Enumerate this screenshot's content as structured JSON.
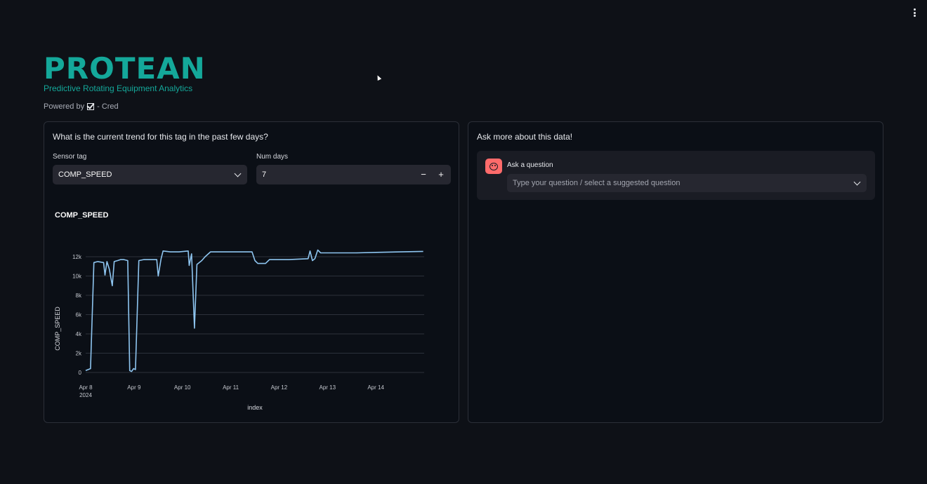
{
  "header": {
    "brand_title": "PROTEAN",
    "brand_subtitle": "Predictive Rotating Equipment Analytics",
    "powered_by": "Powered by",
    "powered_suffix": "- Cred"
  },
  "left_panel": {
    "question": "What is the current trend for this tag in the past few days?",
    "sensor_label": "Sensor tag",
    "sensor_value": "COMP_SPEED",
    "days_label": "Num days",
    "days_value": "7",
    "minus_label": "−",
    "plus_label": "+"
  },
  "right_panel": {
    "title": "Ask more about this data!",
    "ask_label": "Ask a question",
    "ask_placeholder": "Type your question / select a suggested question"
  },
  "colors": {
    "accent": "#14a89a",
    "line": "#8ec5f0",
    "avatar": "#ff6b6b"
  },
  "chart_data": {
    "type": "line",
    "title": "COMP_SPEED",
    "xlabel": "index",
    "ylabel": "COMP_SPEED",
    "ylim": [
      0,
      12000
    ],
    "xlim": [
      0,
      7
    ],
    "y_ticks": [
      {
        "value": 0,
        "label": "0"
      },
      {
        "value": 2000,
        "label": "2k"
      },
      {
        "value": 4000,
        "label": "4k"
      },
      {
        "value": 6000,
        "label": "6k"
      },
      {
        "value": 8000,
        "label": "8k"
      },
      {
        "value": 10000,
        "label": "10k"
      },
      {
        "value": 12000,
        "label": "12k"
      }
    ],
    "x_ticks": [
      {
        "value": 0,
        "label": "Apr 8",
        "sub": "2024"
      },
      {
        "value": 1,
        "label": "Apr 9",
        "sub": ""
      },
      {
        "value": 2,
        "label": "Apr 10",
        "sub": ""
      },
      {
        "value": 3,
        "label": "Apr 11",
        "sub": ""
      },
      {
        "value": 4,
        "label": "Apr 12",
        "sub": ""
      },
      {
        "value": 5,
        "label": "Apr 13",
        "sub": ""
      },
      {
        "value": 6,
        "label": "Apr 14",
        "sub": ""
      }
    ],
    "series": [
      {
        "name": "COMP_SPEED",
        "points": [
          [
            0.0,
            200
          ],
          [
            0.1,
            400
          ],
          [
            0.17,
            11400
          ],
          [
            0.25,
            11500
          ],
          [
            0.37,
            11400
          ],
          [
            0.4,
            10100
          ],
          [
            0.44,
            11500
          ],
          [
            0.49,
            10700
          ],
          [
            0.55,
            9000
          ],
          [
            0.59,
            11500
          ],
          [
            0.66,
            11600
          ],
          [
            0.72,
            11700
          ],
          [
            0.79,
            11700
          ],
          [
            0.87,
            11600
          ],
          [
            0.91,
            200
          ],
          [
            0.95,
            100
          ],
          [
            0.99,
            400
          ],
          [
            1.03,
            300
          ],
          [
            1.1,
            11600
          ],
          [
            1.2,
            11700
          ],
          [
            1.35,
            11700
          ],
          [
            1.47,
            11700
          ],
          [
            1.5,
            10000
          ],
          [
            1.56,
            11800
          ],
          [
            1.6,
            12600
          ],
          [
            1.75,
            12500
          ],
          [
            1.93,
            12500
          ],
          [
            2.12,
            12600
          ],
          [
            2.14,
            11100
          ],
          [
            2.19,
            12300
          ],
          [
            2.25,
            4600
          ],
          [
            2.3,
            11200
          ],
          [
            2.4,
            11600
          ],
          [
            2.47,
            12000
          ],
          [
            2.58,
            12500
          ],
          [
            2.8,
            12500
          ],
          [
            3.1,
            12500
          ],
          [
            3.44,
            12500
          ],
          [
            3.5,
            11600
          ],
          [
            3.56,
            11300
          ],
          [
            3.72,
            11300
          ],
          [
            3.8,
            11700
          ],
          [
            4.2,
            11700
          ],
          [
            4.6,
            11800
          ],
          [
            4.64,
            12600
          ],
          [
            4.69,
            11600
          ],
          [
            4.74,
            11800
          ],
          [
            4.8,
            12700
          ],
          [
            4.86,
            12400
          ],
          [
            5.2,
            12400
          ],
          [
            5.6,
            12400
          ],
          [
            6.0,
            12450
          ],
          [
            6.5,
            12500
          ],
          [
            6.98,
            12550
          ]
        ]
      }
    ]
  }
}
